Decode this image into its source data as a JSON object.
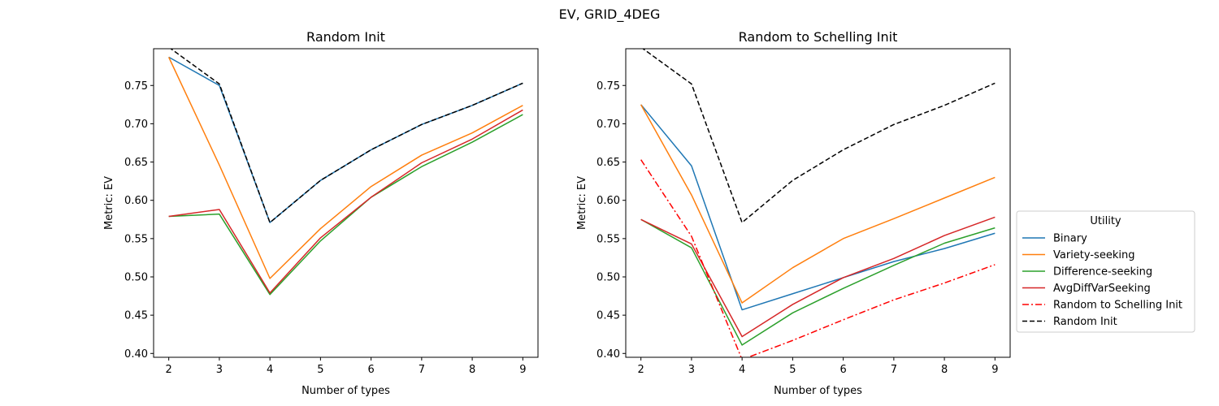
{
  "suptitle": "EV, GRID_4DEG",
  "chart_data": [
    {
      "type": "line",
      "title": "Random Init",
      "xlabel": "Number of types",
      "ylabel": "Metric: EV",
      "x": [
        2,
        3,
        4,
        5,
        6,
        7,
        8,
        9
      ],
      "xlim": [
        1.7,
        9.3
      ],
      "ylim": [
        0.395,
        0.798
      ],
      "xticks": [
        2,
        3,
        4,
        5,
        6,
        7,
        8,
        9
      ],
      "yticks": [
        0.4,
        0.45,
        0.5,
        0.55,
        0.6,
        0.65,
        0.7,
        0.75
      ],
      "series": [
        {
          "name": "Binary",
          "color": "#1f77b4",
          "style": "solid",
          "values": [
            0.787,
            0.75,
            0.571,
            0.626,
            0.666,
            0.699,
            0.724,
            0.753
          ]
        },
        {
          "name": "Variety-seeking",
          "color": "#ff7f0e",
          "style": "solid",
          "values": [
            0.787,
            0.646,
            0.498,
            0.563,
            0.618,
            0.659,
            0.688,
            0.724
          ]
        },
        {
          "name": "Difference-seeking",
          "color": "#2ca02c",
          "style": "solid",
          "values": [
            0.579,
            0.582,
            0.477,
            0.547,
            0.604,
            0.644,
            0.676,
            0.712
          ]
        },
        {
          "name": "AvgDiffVarSeeking",
          "color": "#d62728",
          "style": "solid",
          "values": [
            0.579,
            0.588,
            0.479,
            0.551,
            0.604,
            0.649,
            0.68,
            0.718
          ]
        },
        {
          "name": "Random Init",
          "color": "#000000",
          "style": "dashed",
          "values": [
            0.8,
            0.752,
            0.571,
            0.626,
            0.666,
            0.699,
            0.724,
            0.753
          ]
        }
      ]
    },
    {
      "type": "line",
      "title": "Random to Schelling Init",
      "xlabel": "Number of types",
      "ylabel": "Metric: EV",
      "x": [
        2,
        3,
        4,
        5,
        6,
        7,
        8,
        9
      ],
      "xlim": [
        1.7,
        9.3
      ],
      "ylim": [
        0.395,
        0.798
      ],
      "xticks": [
        2,
        3,
        4,
        5,
        6,
        7,
        8,
        9
      ],
      "yticks": [
        0.4,
        0.45,
        0.5,
        0.55,
        0.6,
        0.65,
        0.7,
        0.75
      ],
      "series": [
        {
          "name": "Binary",
          "color": "#1f77b4",
          "style": "solid",
          "values": [
            0.725,
            0.645,
            0.457,
            0.478,
            0.499,
            0.52,
            0.537,
            0.557
          ]
        },
        {
          "name": "Variety-seeking",
          "color": "#ff7f0e",
          "style": "solid",
          "values": [
            0.725,
            0.607,
            0.466,
            0.512,
            0.55,
            0.576,
            0.603,
            0.63
          ]
        },
        {
          "name": "Difference-seeking",
          "color": "#2ca02c",
          "style": "solid",
          "values": [
            0.575,
            0.538,
            0.411,
            0.453,
            0.485,
            0.515,
            0.544,
            0.564
          ]
        },
        {
          "name": "AvgDiffVarSeeking",
          "color": "#d62728",
          "style": "solid",
          "values": [
            0.575,
            0.543,
            0.422,
            0.464,
            0.499,
            0.524,
            0.554,
            0.578
          ]
        },
        {
          "name": "Random to Schelling Init",
          "color": "#ff0000",
          "style": "dashdot",
          "values": [
            0.653,
            0.553,
            0.392,
            0.417,
            0.444,
            0.47,
            0.492,
            0.516
          ]
        },
        {
          "name": "Random Init",
          "color": "#000000",
          "style": "dashed",
          "values": [
            0.8,
            0.752,
            0.571,
            0.626,
            0.666,
            0.699,
            0.724,
            0.753
          ]
        }
      ]
    }
  ],
  "legend": {
    "title": "Utility",
    "position": "center-right",
    "entries": [
      {
        "label": "Binary",
        "color": "#1f77b4",
        "style": "solid"
      },
      {
        "label": "Variety-seeking",
        "color": "#ff7f0e",
        "style": "solid"
      },
      {
        "label": "Difference-seeking",
        "color": "#2ca02c",
        "style": "solid"
      },
      {
        "label": "AvgDiffVarSeeking",
        "color": "#d62728",
        "style": "solid"
      },
      {
        "label": "Random to Schelling Init",
        "color": "#ff0000",
        "style": "dashdot"
      },
      {
        "label": "Random Init",
        "color": "#000000",
        "style": "dashed"
      }
    ]
  }
}
